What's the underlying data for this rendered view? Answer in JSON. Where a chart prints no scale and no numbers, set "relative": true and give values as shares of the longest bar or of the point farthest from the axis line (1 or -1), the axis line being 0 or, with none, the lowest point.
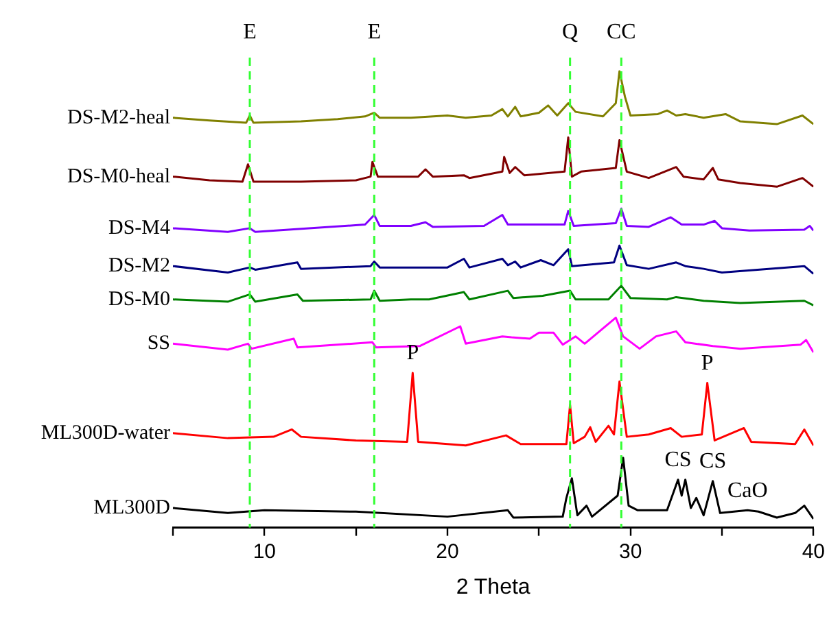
{
  "chart_data": {
    "type": "line",
    "relative": true,
    "xlabel": "2 Theta",
    "xlim": [
      5,
      40
    ],
    "xticks": [
      {
        "value": 5,
        "label": null
      },
      10,
      {
        "value": 15,
        "label": null
      },
      20,
      {
        "value": 25,
        "label": null
      },
      30,
      {
        "value": 35,
        "label": null
      },
      40
    ],
    "line_style": "solid",
    "series": [
      {
        "name": "DS-M2-heal",
        "color": "#808000",
        "x": [
          5,
          7,
          9,
          9.2,
          9.4,
          12,
          14,
          15.5,
          16,
          16.3,
          18,
          20,
          21,
          22.4,
          23,
          23.3,
          23.7,
          24,
          25,
          25.5,
          26,
          26.6,
          27,
          28.5,
          29.2,
          29.4,
          29.7,
          30,
          31.5,
          32,
          32.5,
          33,
          34,
          35.2,
          36,
          38,
          39.4,
          40
        ],
        "values": [
          0.898,
          0.892,
          0.887,
          0.903,
          0.887,
          0.89,
          0.895,
          0.901,
          0.909,
          0.898,
          0.898,
          0.903,
          0.898,
          0.903,
          0.917,
          0.901,
          0.922,
          0.901,
          0.909,
          0.925,
          0.903,
          0.93,
          0.911,
          0.901,
          0.93,
          1.0,
          0.944,
          0.903,
          0.906,
          0.914,
          0.903,
          0.906,
          0.898,
          0.906,
          0.89,
          0.884,
          0.903,
          0.884
        ]
      },
      {
        "name": "DS-M0-heal",
        "color": "#800000",
        "x": [
          5,
          7,
          8.8,
          9.1,
          9.4,
          12,
          15,
          15.8,
          15.9,
          16.2,
          18.4,
          18.8,
          19.2,
          20.9,
          21.2,
          23,
          23.1,
          23.4,
          23.7,
          24.2,
          26.4,
          26.6,
          26.8,
          27.3,
          29.2,
          29.4,
          29.8,
          31,
          32.5,
          32.9,
          34,
          34.5,
          34.8,
          36,
          38,
          39.4,
          40
        ],
        "values": [
          0.769,
          0.761,
          0.758,
          0.796,
          0.758,
          0.758,
          0.761,
          0.769,
          0.801,
          0.769,
          0.769,
          0.785,
          0.769,
          0.772,
          0.766,
          0.78,
          0.812,
          0.777,
          0.79,
          0.772,
          0.78,
          0.855,
          0.769,
          0.78,
          0.788,
          0.849,
          0.78,
          0.766,
          0.79,
          0.769,
          0.763,
          0.788,
          0.763,
          0.755,
          0.747,
          0.766,
          0.747
        ]
      },
      {
        "name": "DS-M4",
        "color": "#8000ff",
        "x": [
          5,
          8,
          9.2,
          9.5,
          15.5,
          16,
          16.3,
          18,
          18.8,
          19.2,
          22,
          23,
          23.3,
          26.4,
          26.6,
          26.9,
          29.2,
          29.5,
          29.8,
          31,
          32.2,
          32.8,
          34,
          34.6,
          35,
          36.5,
          39.5,
          39.8,
          40
        ],
        "values": [
          0.656,
          0.648,
          0.656,
          0.648,
          0.664,
          0.685,
          0.661,
          0.661,
          0.669,
          0.659,
          0.661,
          0.685,
          0.664,
          0.664,
          0.694,
          0.661,
          0.667,
          0.699,
          0.661,
          0.659,
          0.68,
          0.664,
          0.664,
          0.672,
          0.656,
          0.651,
          0.653,
          0.661,
          0.651
        ]
      },
      {
        "name": "DS-M2",
        "color": "#000080",
        "x": [
          5,
          8,
          9.2,
          9.5,
          11.8,
          12,
          15.8,
          16,
          16.3,
          20,
          20.9,
          21.2,
          23,
          23.3,
          23.7,
          24,
          25.1,
          25.8,
          26.6,
          26.8,
          29.1,
          29.4,
          29.8,
          31,
          32.5,
          33,
          34,
          35,
          39.5,
          40
        ],
        "values": [
          0.573,
          0.559,
          0.57,
          0.565,
          0.581,
          0.567,
          0.573,
          0.583,
          0.57,
          0.57,
          0.589,
          0.57,
          0.589,
          0.575,
          0.583,
          0.57,
          0.586,
          0.575,
          0.61,
          0.573,
          0.581,
          0.618,
          0.575,
          0.567,
          0.581,
          0.573,
          0.567,
          0.559,
          0.573,
          0.556
        ]
      },
      {
        "name": "DS-M0",
        "color": "#008000",
        "x": [
          5,
          8,
          9.2,
          9.5,
          11.8,
          12.1,
          15.8,
          16,
          16.3,
          18,
          19,
          20.9,
          21.2,
          23.3,
          23.6,
          25.2,
          26.7,
          27,
          28.8,
          29.5,
          30,
          32,
          32.5,
          34,
          36,
          39.5,
          40
        ],
        "values": [
          0.5,
          0.495,
          0.511,
          0.495,
          0.511,
          0.497,
          0.5,
          0.519,
          0.497,
          0.5,
          0.5,
          0.516,
          0.5,
          0.519,
          0.503,
          0.508,
          0.519,
          0.5,
          0.5,
          0.53,
          0.503,
          0.5,
          0.505,
          0.497,
          0.492,
          0.497,
          0.487
        ]
      },
      {
        "name": "SS",
        "color": "#ff00ff",
        "x": [
          5,
          8,
          9.1,
          9.3,
          11.6,
          11.8,
          15.9,
          16.1,
          18.5,
          20.7,
          21,
          23,
          23.5,
          24.5,
          25,
          25.8,
          26.3,
          27,
          27.5,
          29.2,
          29.6,
          30.5,
          31.4,
          32.5,
          33,
          34.5,
          36,
          39.3,
          39.6,
          40
        ],
        "values": [
          0.403,
          0.39,
          0.403,
          0.392,
          0.414,
          0.395,
          0.406,
          0.395,
          0.398,
          0.441,
          0.403,
          0.419,
          0.417,
          0.414,
          0.427,
          0.427,
          0.401,
          0.419,
          0.403,
          0.46,
          0.419,
          0.392,
          0.419,
          0.43,
          0.406,
          0.398,
          0.392,
          0.401,
          0.411,
          0.384
        ]
      },
      {
        "name": "ML300D-water",
        "color": "#ff0000",
        "x": [
          5,
          8,
          10.5,
          11.5,
          12,
          15,
          17.8,
          18.1,
          18.4,
          21,
          23.2,
          24,
          26.5,
          26.7,
          26.9,
          27.5,
          27.8,
          28.1,
          28.8,
          29.1,
          29.4,
          29.8,
          31,
          32.2,
          32.8,
          33.9,
          34.2,
          34.6,
          36.2,
          36.6,
          39,
          39.5,
          40
        ],
        "values": [
          0.207,
          0.196,
          0.199,
          0.215,
          0.199,
          0.191,
          0.188,
          0.339,
          0.188,
          0.18,
          0.202,
          0.183,
          0.183,
          0.269,
          0.185,
          0.199,
          0.22,
          0.188,
          0.223,
          0.204,
          0.32,
          0.199,
          0.204,
          0.218,
          0.199,
          0.204,
          0.317,
          0.191,
          0.218,
          0.188,
          0.183,
          0.215,
          0.18
        ]
      },
      {
        "name": "ML300D",
        "color": "#000000",
        "x": [
          5,
          8,
          10,
          15,
          20,
          23.3,
          23.6,
          26.3,
          26.5,
          26.8,
          27.1,
          27.6,
          27.9,
          29.3,
          29.6,
          29.9,
          30.4,
          32,
          32.6,
          32.8,
          33,
          33.3,
          33.6,
          34,
          34.5,
          34.9,
          36.4,
          37,
          38,
          39,
          39.5,
          40
        ],
        "values": [
          0.043,
          0.032,
          0.038,
          0.035,
          0.024,
          0.038,
          0.022,
          0.024,
          0.065,
          0.108,
          0.027,
          0.048,
          0.024,
          0.07,
          0.153,
          0.048,
          0.038,
          0.038,
          0.105,
          0.07,
          0.105,
          0.043,
          0.065,
          0.027,
          0.102,
          0.032,
          0.038,
          0.035,
          0.022,
          0.032,
          0.048,
          0.019
        ]
      }
    ],
    "ref_lines": [
      {
        "axis": "x",
        "value": 9.2,
        "label": "E",
        "color": "#33ff33",
        "line_style": "dashed"
      },
      {
        "axis": "x",
        "value": 16,
        "label": "E",
        "color": "#33ff33",
        "line_style": "dashed"
      },
      {
        "axis": "x",
        "value": 26.7,
        "label": "Q",
        "color": "#33ff33",
        "line_style": "dashed"
      },
      {
        "axis": "x",
        "value": 29.5,
        "label": "CC",
        "color": "#33ff33",
        "line_style": "dashed"
      }
    ],
    "annotations": [
      {
        "text": "P",
        "x": 18.1,
        "y": 0.339
      },
      {
        "text": "P",
        "x": 34.2,
        "y": 0.317
      },
      {
        "text": "CS",
        "x": 32.6,
        "y": 0.105
      },
      {
        "text": "CS",
        "x": 34.5,
        "y": 0.102
      },
      {
        "text": "CaO",
        "x": 36.4,
        "y": 0.038
      }
    ]
  }
}
